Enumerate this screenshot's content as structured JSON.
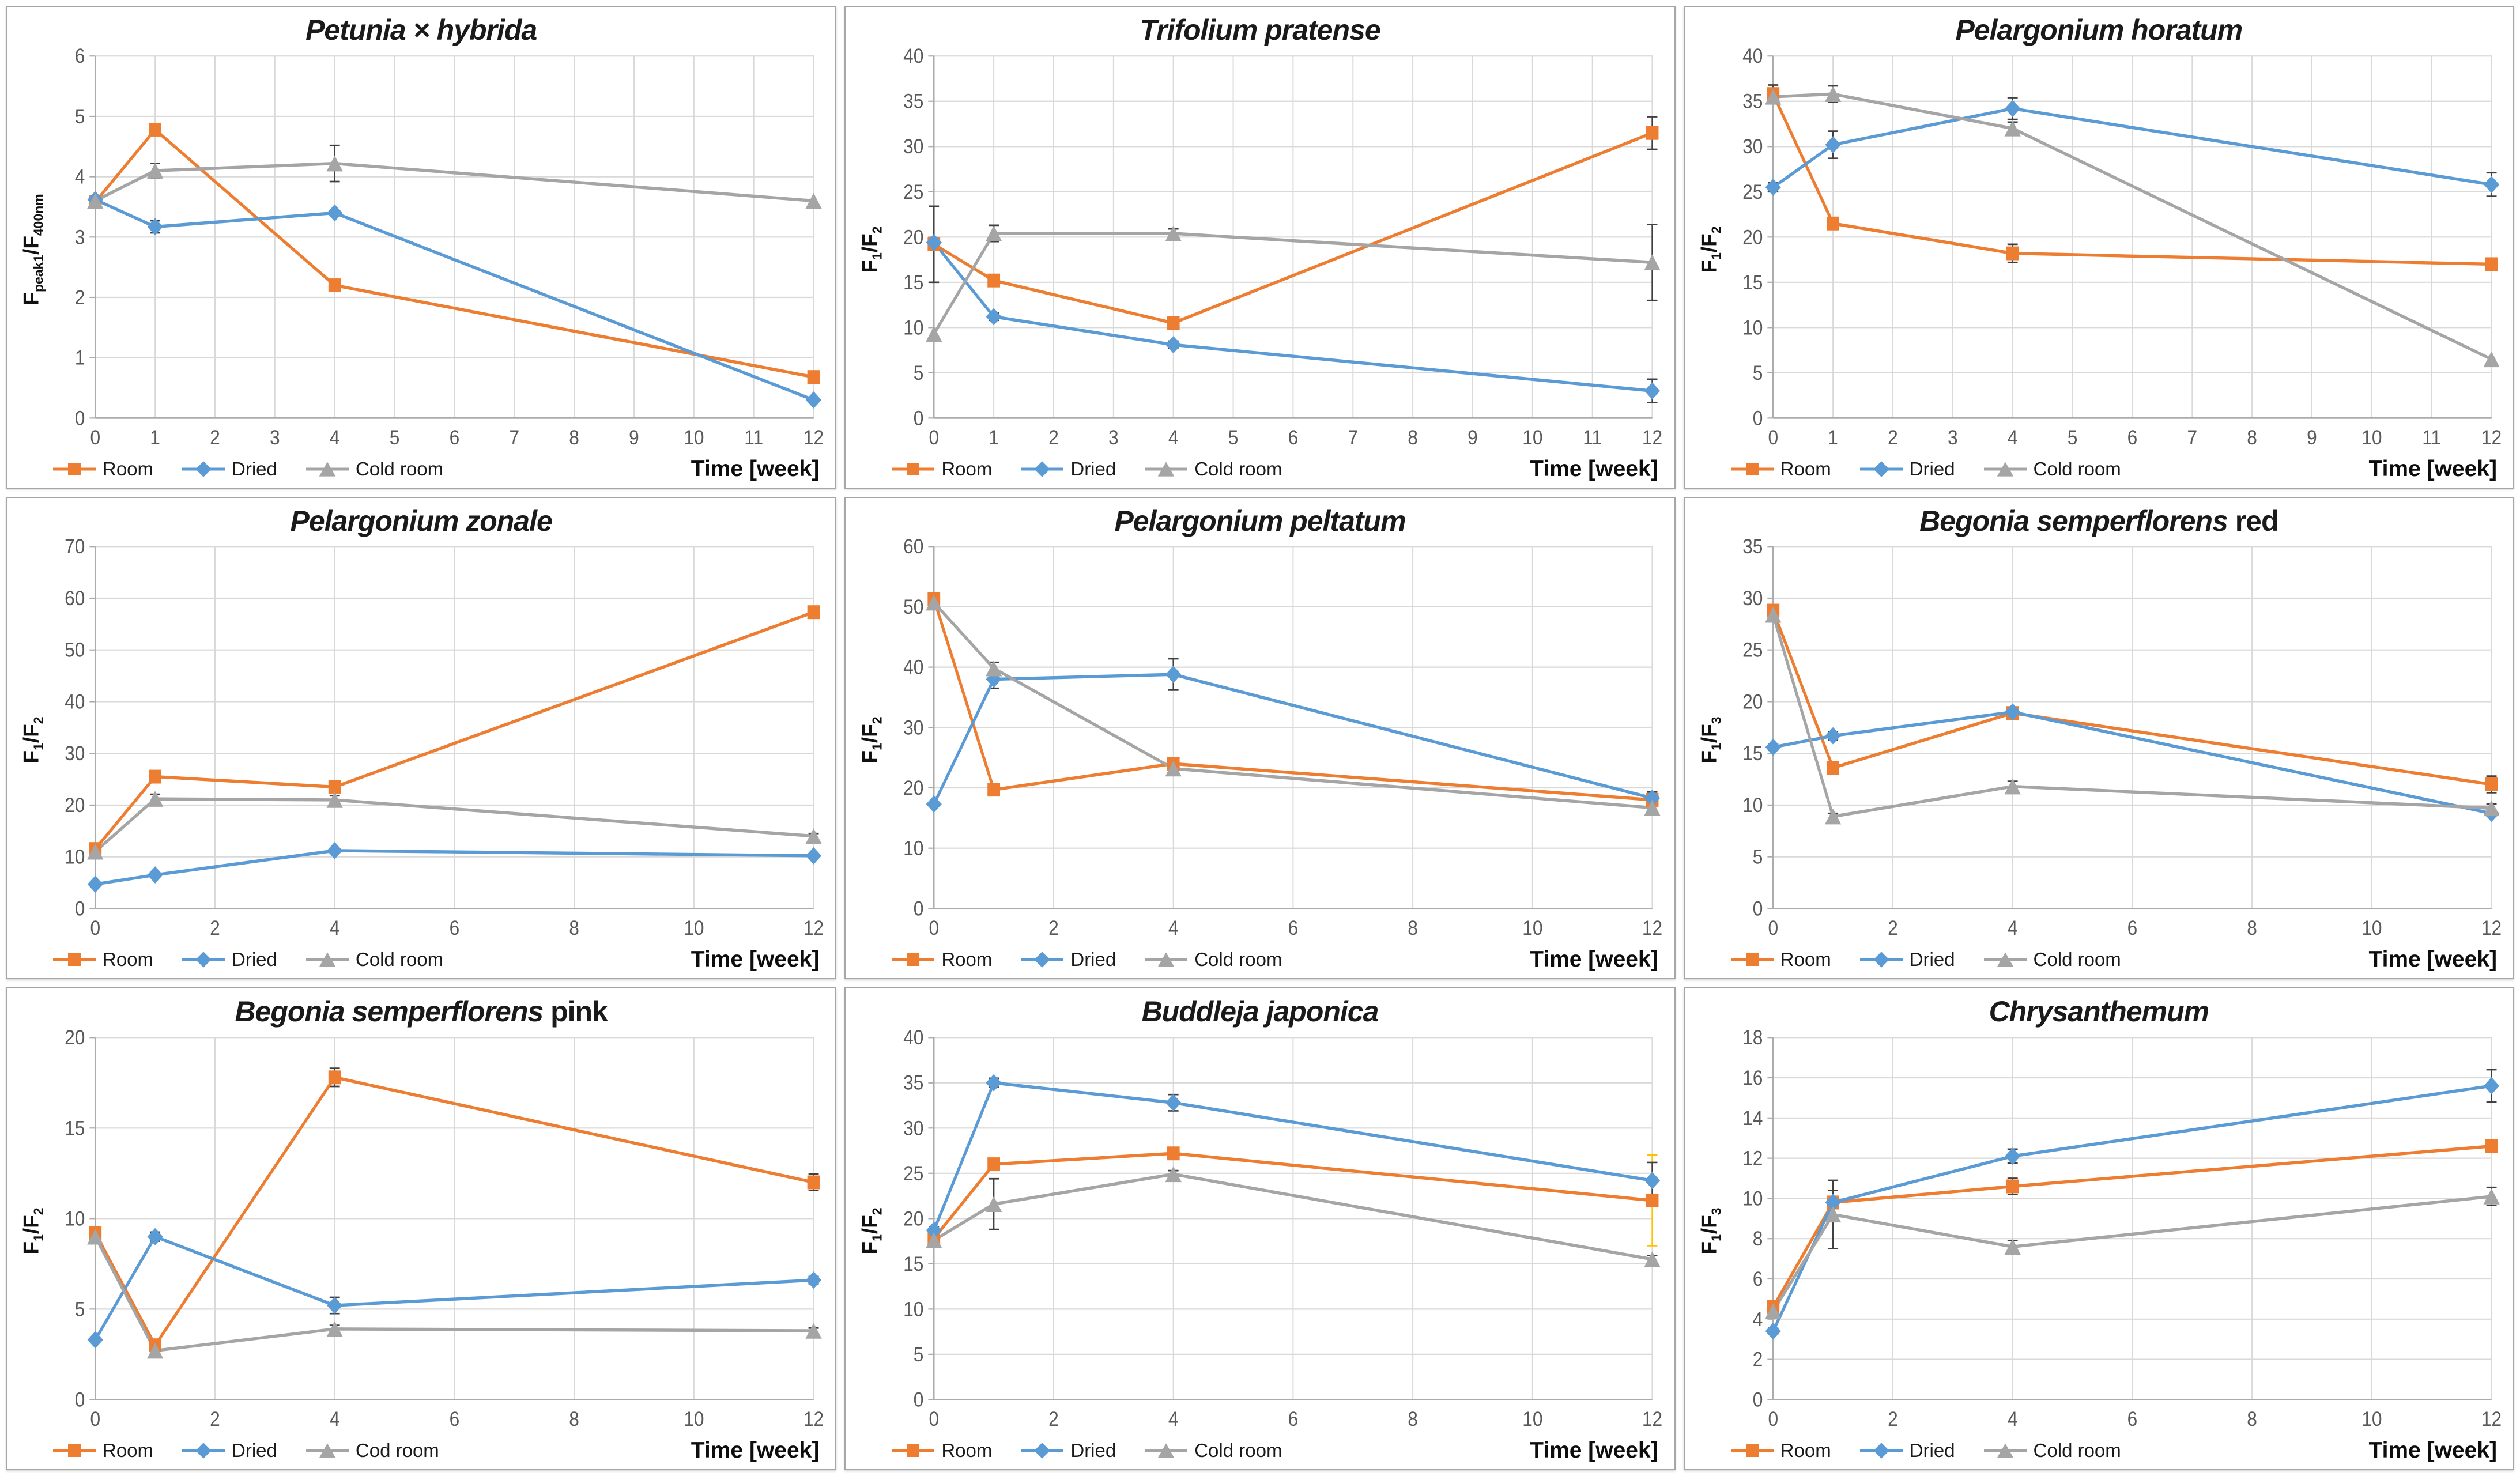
{
  "x_axis_label": "Time [week]",
  "palette": {
    "room": "#ED7D31",
    "dried": "#5B9BD5",
    "cold_room": "#A5A5A5",
    "grid": "#D9D9D9",
    "axis": "#ABABAB",
    "tick_text": "#595959",
    "error_bar": "#404040",
    "gold_error_bar": "#FFC000"
  },
  "chart_data": [
    {
      "type": "line",
      "title_italic": "Petunia × hybrida",
      "title_regular": "",
      "ylabel_parts": [
        {
          "text": "F"
        },
        {
          "text": "peak1",
          "sub": true
        },
        {
          "text": "/F"
        },
        {
          "text": "400nm",
          "sub": true
        }
      ],
      "xlim": [
        0,
        12
      ],
      "ylim": [
        0,
        6
      ],
      "ytick_step": 1,
      "xticks": [
        0,
        1,
        2,
        3,
        4,
        5,
        6,
        7,
        8,
        9,
        10,
        11,
        12
      ],
      "x": [
        0,
        1,
        4,
        12
      ],
      "legend_position": "bottom-left",
      "grid": true,
      "series": [
        {
          "name": "Room",
          "color": "#ED7D31",
          "marker": "square",
          "values": [
            3.58,
            4.78,
            2.2,
            0.68
          ],
          "errors": [
            0,
            0,
            0,
            0
          ]
        },
        {
          "name": "Dried",
          "color": "#5B9BD5",
          "marker": "diamond",
          "values": [
            3.62,
            3.17,
            3.4,
            0.3
          ],
          "errors": [
            0,
            0.1,
            0,
            0
          ]
        },
        {
          "name": "Cold room",
          "color": "#A5A5A5",
          "marker": "triangle",
          "values": [
            3.6,
            4.1,
            4.22,
            3.6
          ],
          "errors": [
            0,
            0.12,
            0.3,
            0
          ]
        }
      ]
    },
    {
      "type": "line",
      "title_italic": "Trifolium pratense",
      "title_regular": "",
      "ylabel_parts": [
        {
          "text": "F"
        },
        {
          "text": "1",
          "sub": true
        },
        {
          "text": "/F"
        },
        {
          "text": "2",
          "sub": true
        }
      ],
      "xlim": [
        0,
        12
      ],
      "ylim": [
        0,
        40
      ],
      "ytick_step": 5,
      "xticks": [
        0,
        1,
        2,
        3,
        4,
        5,
        6,
        7,
        8,
        9,
        10,
        11,
        12
      ],
      "x": [
        0,
        1,
        4,
        12
      ],
      "legend_position": "bottom-left",
      "grid": true,
      "series": [
        {
          "name": "Room",
          "color": "#ED7D31",
          "marker": "square",
          "values": [
            19.2,
            15.2,
            10.5,
            31.5
          ],
          "errors": [
            4.2,
            0,
            0.6,
            1.8
          ]
        },
        {
          "name": "Dried",
          "color": "#5B9BD5",
          "marker": "diamond",
          "values": [
            19.4,
            11.2,
            8.1,
            3.0
          ],
          "errors": [
            0,
            0.4,
            0.4,
            1.3
          ]
        },
        {
          "name": "Cold room",
          "color": "#A5A5A5",
          "marker": "triangle",
          "values": [
            9.3,
            20.4,
            20.4,
            17.2
          ],
          "errors": [
            0,
            0.9,
            0.5,
            4.2
          ]
        }
      ]
    },
    {
      "type": "line",
      "title_italic": "Pelargonium horatum",
      "title_regular": "",
      "ylabel_parts": [
        {
          "text": "F"
        },
        {
          "text": "1",
          "sub": true
        },
        {
          "text": "/F"
        },
        {
          "text": "2",
          "sub": true
        }
      ],
      "xlim": [
        0,
        12
      ],
      "ylim": [
        0,
        40
      ],
      "ytick_step": 5,
      "xticks": [
        0,
        1,
        2,
        3,
        4,
        5,
        6,
        7,
        8,
        9,
        10,
        11,
        12
      ],
      "x": [
        0,
        1,
        4,
        12
      ],
      "legend_position": "bottom-left",
      "grid": true,
      "series": [
        {
          "name": "Room",
          "color": "#ED7D31",
          "marker": "square",
          "values": [
            35.8,
            21.5,
            18.2,
            17.0
          ],
          "errors": [
            1.0,
            0.6,
            1.0,
            0.4
          ]
        },
        {
          "name": "Dried",
          "color": "#5B9BD5",
          "marker": "diamond",
          "values": [
            25.5,
            30.2,
            34.2,
            25.8
          ],
          "errors": [
            0.5,
            1.5,
            1.2,
            1.3
          ]
        },
        {
          "name": "Cold room",
          "color": "#A5A5A5",
          "marker": "triangle",
          "values": [
            35.5,
            35.8,
            32.0,
            6.5
          ],
          "errors": [
            0.4,
            0.9,
            0.7,
            0
          ]
        }
      ]
    },
    {
      "type": "line",
      "title_italic": "Pelargonium zonale",
      "title_regular": "",
      "ylabel_parts": [
        {
          "text": "F"
        },
        {
          "text": "1",
          "sub": true
        },
        {
          "text": "/F"
        },
        {
          "text": "2",
          "sub": true
        }
      ],
      "xlim": [
        0,
        12
      ],
      "ylim": [
        0,
        70
      ],
      "ytick_step": 10,
      "xticks": [
        0,
        2,
        4,
        6,
        8,
        10,
        12
      ],
      "x": [
        0,
        1,
        4,
        12
      ],
      "legend_position": "bottom-left",
      "grid": true,
      "series": [
        {
          "name": "Room",
          "color": "#ED7D31",
          "marker": "square",
          "values": [
            11.5,
            25.5,
            23.5,
            57.3
          ],
          "errors": [
            0.5,
            0.6,
            0.8,
            0.5
          ]
        },
        {
          "name": "Dried",
          "color": "#5B9BD5",
          "marker": "diamond",
          "values": [
            4.7,
            6.5,
            11.2,
            10.2
          ],
          "errors": [
            0.3,
            0.3,
            0.4,
            0.3
          ]
        },
        {
          "name": "Cold room",
          "color": "#A5A5A5",
          "marker": "triangle",
          "values": [
            11.0,
            21.2,
            21.0,
            14.0
          ],
          "errors": [
            0.3,
            0.9,
            0.8,
            0.5
          ]
        }
      ]
    },
    {
      "type": "line",
      "title_italic": "Pelargonium peltatum",
      "title_regular": "",
      "ylabel_parts": [
        {
          "text": "F"
        },
        {
          "text": "1",
          "sub": true
        },
        {
          "text": "/F"
        },
        {
          "text": "2",
          "sub": true
        }
      ],
      "xlim": [
        0,
        12
      ],
      "ylim": [
        0,
        60
      ],
      "ytick_step": 10,
      "xticks": [
        0,
        2,
        4,
        6,
        8,
        10,
        12
      ],
      "x": [
        0,
        1,
        4,
        12
      ],
      "legend_position": "bottom-left",
      "grid": true,
      "series": [
        {
          "name": "Room",
          "color": "#ED7D31",
          "marker": "square",
          "values": [
            51.3,
            19.7,
            24.0,
            18.0
          ],
          "errors": [
            0.8,
            0.5,
            0.5,
            0.5
          ]
        },
        {
          "name": "Dried",
          "color": "#5B9BD5",
          "marker": "diamond",
          "values": [
            17.3,
            38.0,
            38.8,
            18.3
          ],
          "errors": [
            0.3,
            1.5,
            2.6,
            1.0
          ]
        },
        {
          "name": "Cold room",
          "color": "#A5A5A5",
          "marker": "triangle",
          "values": [
            50.7,
            39.8,
            23.2,
            16.7
          ],
          "errors": [
            0.5,
            1.0,
            0.5,
            0.5
          ]
        }
      ]
    },
    {
      "type": "line",
      "title_italic": "Begonia semperflorens",
      "title_regular": " red",
      "ylabel_parts": [
        {
          "text": "F"
        },
        {
          "text": "1",
          "sub": true
        },
        {
          "text": "/F"
        },
        {
          "text": "3",
          "sub": true
        }
      ],
      "xlim": [
        0,
        12
      ],
      "ylim": [
        0,
        35
      ],
      "ytick_step": 5,
      "xticks": [
        0,
        2,
        4,
        6,
        8,
        10,
        12
      ],
      "x": [
        0,
        1,
        4,
        12
      ],
      "legend_position": "bottom-left",
      "grid": true,
      "series": [
        {
          "name": "Room",
          "color": "#ED7D31",
          "marker": "square",
          "values": [
            28.8,
            13.6,
            18.9,
            12.0
          ],
          "errors": [
            0.5,
            0.4,
            0.4,
            0.8
          ]
        },
        {
          "name": "Dried",
          "color": "#5B9BD5",
          "marker": "diamond",
          "values": [
            15.6,
            16.7,
            19.0,
            9.2
          ],
          "errors": [
            0.3,
            0.4,
            0.3,
            0.3
          ]
        },
        {
          "name": "Cold room",
          "color": "#A5A5A5",
          "marker": "triangle",
          "values": [
            28.4,
            8.9,
            11.8,
            9.7
          ],
          "errors": [
            0.3,
            0.3,
            0.5,
            0.4
          ]
        }
      ]
    },
    {
      "type": "line",
      "title_italic": "Begonia semperflorens",
      "title_regular": " pink",
      "ylabel_parts": [
        {
          "text": "F"
        },
        {
          "text": "1",
          "sub": true
        },
        {
          "text": "/F"
        },
        {
          "text": "2",
          "sub": true
        }
      ],
      "xlim": [
        0,
        12
      ],
      "ylim": [
        0,
        20
      ],
      "ytick_step": 5,
      "xticks": [
        0,
        2,
        4,
        6,
        8,
        10,
        12
      ],
      "x": [
        0,
        1,
        4,
        12
      ],
      "legend_position": "bottom-left",
      "grid": true,
      "series": [
        {
          "name": "Room",
          "color": "#ED7D31",
          "marker": "square",
          "values": [
            9.2,
            3.0,
            17.8,
            12.0
          ],
          "errors": [
            0.2,
            0.15,
            0.5,
            0.45
          ]
        },
        {
          "name": "Dried",
          "color": "#5B9BD5",
          "marker": "diamond",
          "values": [
            3.3,
            9.0,
            5.2,
            6.6
          ],
          "errors": [
            0.15,
            0.25,
            0.45,
            0.2
          ]
        },
        {
          "name": "Cod room",
          "color": "#A5A5A5",
          "marker": "triangle",
          "values": [
            9.0,
            2.7,
            3.9,
            3.8
          ],
          "errors": [
            0.15,
            0.3,
            0.2,
            0.15
          ]
        }
      ]
    },
    {
      "type": "line",
      "title_italic": "Buddleja japonica",
      "title_regular": "",
      "ylabel_parts": [
        {
          "text": "F"
        },
        {
          "text": "1",
          "sub": true
        },
        {
          "text": "/F"
        },
        {
          "text": "2",
          "sub": true
        }
      ],
      "xlim": [
        0,
        12
      ],
      "ylim": [
        0,
        40
      ],
      "ytick_step": 5,
      "xticks": [
        0,
        2,
        4,
        6,
        8,
        10,
        12
      ],
      "x": [
        0,
        1,
        4,
        12
      ],
      "legend_position": "bottom-left",
      "grid": true,
      "series": [
        {
          "name": "Room",
          "color": "#ED7D31",
          "marker": "square",
          "values": [
            17.8,
            26.0,
            27.2,
            22.0
          ],
          "errors": [
            0.4,
            0.5,
            0.6,
            5.0
          ],
          "error_color": "#FFC000"
        },
        {
          "name": "Dried",
          "color": "#5B9BD5",
          "marker": "diamond",
          "values": [
            18.7,
            35.0,
            32.8,
            24.2
          ],
          "errors": [
            0.4,
            0.5,
            0.9,
            2.0
          ]
        },
        {
          "name": "Cold room",
          "color": "#A5A5A5",
          "marker": "triangle",
          "values": [
            17.6,
            21.6,
            24.9,
            15.5
          ],
          "errors": [
            0.3,
            2.8,
            0.4,
            0.4
          ]
        }
      ]
    },
    {
      "type": "line",
      "title_italic": "Chrysanthemum",
      "title_regular": "",
      "ylabel_parts": [
        {
          "text": "F"
        },
        {
          "text": "1",
          "sub": true
        },
        {
          "text": "/F"
        },
        {
          "text": "3",
          "sub": true
        }
      ],
      "xlim": [
        0,
        12
      ],
      "ylim": [
        0,
        18
      ],
      "ytick_step": 2,
      "xticks": [
        0,
        2,
        4,
        6,
        8,
        10,
        12
      ],
      "x": [
        0,
        1,
        4,
        12
      ],
      "legend_position": "bottom-left",
      "grid": true,
      "series": [
        {
          "name": "Room",
          "color": "#ED7D31",
          "marker": "square",
          "values": [
            4.6,
            9.8,
            10.6,
            12.6
          ],
          "errors": [
            0.25,
            0.3,
            0.4,
            0.3
          ]
        },
        {
          "name": "Dried",
          "color": "#5B9BD5",
          "marker": "diamond",
          "values": [
            3.4,
            9.8,
            12.1,
            15.6
          ],
          "errors": [
            0.15,
            0.6,
            0.35,
            0.8
          ]
        },
        {
          "name": "Cold room",
          "color": "#A5A5A5",
          "marker": "triangle",
          "values": [
            4.4,
            9.2,
            7.6,
            10.1
          ],
          "errors": [
            0.3,
            1.7,
            0.3,
            0.45
          ]
        }
      ]
    }
  ]
}
